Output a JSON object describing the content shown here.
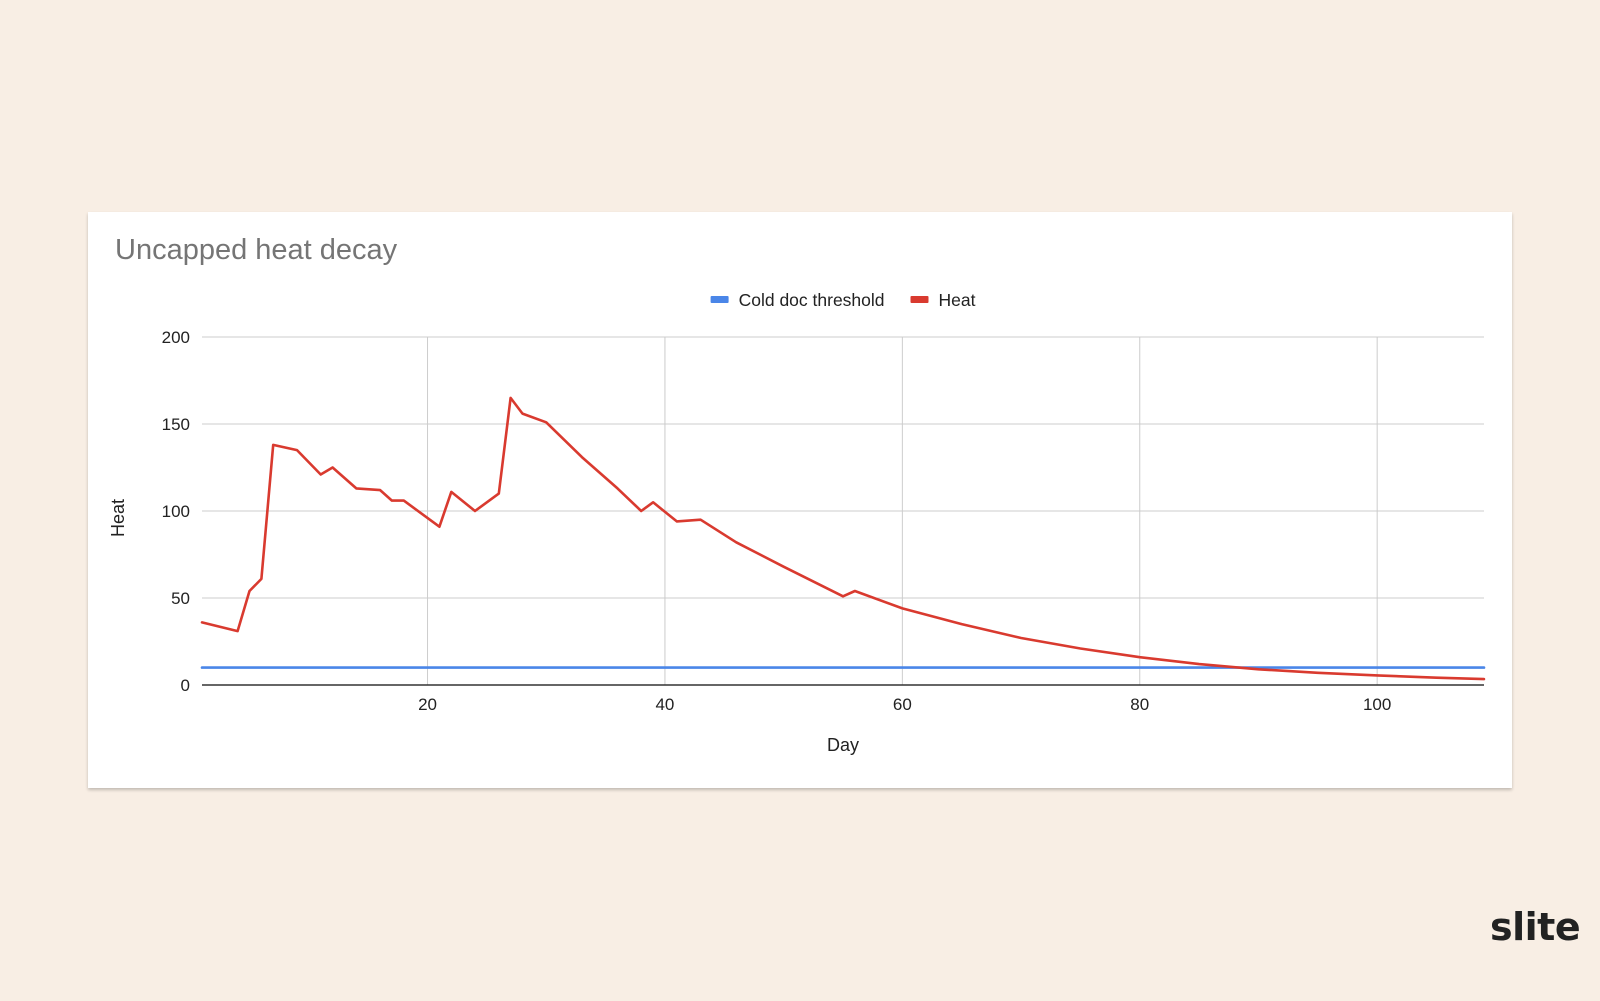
{
  "brand": {
    "logo_text": "slite"
  },
  "colors": {
    "background": "#f8eee4",
    "card": "#ffffff",
    "grid": "#cccccc",
    "axis": "#333333",
    "threshold": "#4a86e8",
    "heat": "#d93a2f"
  },
  "chart_data": {
    "type": "line",
    "title": "Uncapped heat decay",
    "xlabel": "Day",
    "ylabel": "Heat",
    "xlim": [
      1,
      109
    ],
    "ylim": [
      0,
      200
    ],
    "x_ticks": [
      20,
      40,
      60,
      80,
      100
    ],
    "y_ticks": [
      0,
      50,
      100,
      150,
      200
    ],
    "grid": true,
    "legend_position": "top-center",
    "series": [
      {
        "name": "Cold doc threshold",
        "color": "#4a86e8",
        "points": [
          [
            1,
            10
          ],
          [
            109,
            10
          ]
        ]
      },
      {
        "name": "Heat",
        "color": "#d93a2f",
        "points": [
          [
            1,
            36
          ],
          [
            4,
            31
          ],
          [
            5,
            54
          ],
          [
            6,
            61
          ],
          [
            7,
            138
          ],
          [
            9,
            135
          ],
          [
            11,
            121
          ],
          [
            12,
            125
          ],
          [
            14,
            113
          ],
          [
            16,
            112
          ],
          [
            17,
            106
          ],
          [
            18,
            106
          ],
          [
            21,
            91
          ],
          [
            22,
            111
          ],
          [
            24,
            100
          ],
          [
            26,
            110
          ],
          [
            27,
            165
          ],
          [
            28,
            156
          ],
          [
            30,
            151
          ],
          [
            33,
            131
          ],
          [
            36,
            113
          ],
          [
            38,
            100
          ],
          [
            39,
            105
          ],
          [
            41,
            94
          ],
          [
            43,
            95
          ],
          [
            46,
            82
          ],
          [
            50,
            68
          ],
          [
            55,
            51
          ],
          [
            56,
            54
          ],
          [
            60,
            44
          ],
          [
            65,
            35
          ],
          [
            70,
            27
          ],
          [
            75,
            21
          ],
          [
            80,
            16
          ],
          [
            85,
            12
          ],
          [
            90,
            9
          ],
          [
            95,
            7
          ],
          [
            100,
            5.5
          ],
          [
            105,
            4.2
          ],
          [
            109,
            3.4
          ]
        ]
      }
    ]
  }
}
